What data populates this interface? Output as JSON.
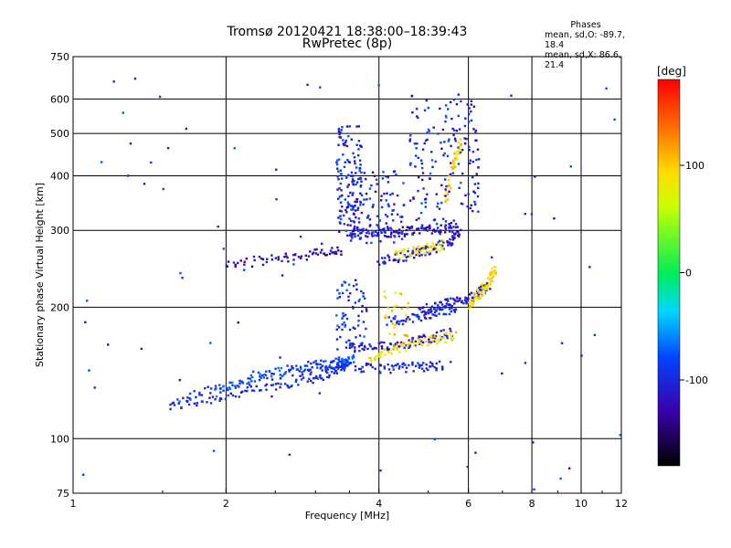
{
  "header": {
    "title": "Tromsø 20120421 18:38:00–18:39:43",
    "subtitle": "RwPretec (8p)"
  },
  "phases_box": {
    "heading": "Phases",
    "line_o": "mean, sd,O: -89.7, 18.4",
    "line_x": "mean, sd,X: 86.6, 21.4"
  },
  "colorbar": {
    "label": "[deg]",
    "ticks": [
      "100",
      "0",
      "-100"
    ]
  },
  "chart_data": {
    "type": "scatter",
    "title": "Tromsø 20120421 18:38:00–18:39:43",
    "subtitle": "RwPretec (8p)",
    "xlabel": "Frequency [MHz]",
    "ylabel": "Stationary phase Virtual Height [km]",
    "xscale": "log",
    "yscale": "log",
    "xlim": [
      1,
      12
    ],
    "ylim": [
      75,
      750
    ],
    "xticks": [
      "1",
      "2",
      "4",
      "6",
      "8",
      "10",
      "12"
    ],
    "yticks": [
      "75",
      "100",
      "200",
      "300",
      "400",
      "500",
      "600",
      "750"
    ],
    "grid": true,
    "color_variable": "phase [deg]",
    "color_range": [
      -180,
      180
    ],
    "traces": [
      {
        "x": [
          1.55,
          2.0,
          2.5,
          3.0,
          3.3,
          3.5
        ],
        "y": [
          118,
          125,
          132,
          138,
          144,
          148
        ],
        "phase": -100
      },
      {
        "x": [
          1.6,
          2.0,
          2.6,
          3.2,
          3.5
        ],
        "y": [
          123,
          132,
          140,
          147,
          150
        ],
        "phase": -90
      },
      {
        "x": [
          1.9,
          2.3,
          2.8,
          3.3,
          3.6
        ],
        "y": [
          128,
          140,
          146,
          150,
          152
        ],
        "phase": -80
      },
      {
        "x": [
          2.0,
          2.5,
          3.0,
          3.4
        ],
        "y": [
          250,
          258,
          265,
          270
        ],
        "phase": -120
      },
      {
        "x": [
          3.5,
          4.0,
          4.5,
          5.0,
          5.6
        ],
        "y": [
          160,
          162,
          165,
          170,
          175
        ],
        "phase": -110
      },
      {
        "x": [
          3.6,
          4.2,
          4.8,
          5.4
        ],
        "y": [
          145,
          145,
          146,
          147
        ],
        "phase": -100
      },
      {
        "x": [
          4.0,
          4.5,
          5.0,
          5.5,
          5.8
        ],
        "y": [
          255,
          262,
          270,
          282,
          300
        ],
        "phase": -110
      },
      {
        "x": [
          3.5,
          4.0,
          4.5,
          5.0,
          5.6
        ],
        "y": [
          295,
          296,
          298,
          302,
          305
        ],
        "phase": -120
      },
      {
        "x": [
          4.2,
          4.8,
          5.3,
          5.7
        ],
        "y": [
          185,
          190,
          196,
          200
        ],
        "phase": -100
      },
      {
        "x": [
          4.8,
          5.3,
          5.8,
          6.2,
          6.6
        ],
        "y": [
          196,
          202,
          207,
          212,
          225
        ],
        "phase": -110
      },
      {
        "x": [
          3.8,
          4.3,
          5.0,
          5.7
        ],
        "y": [
          150,
          160,
          168,
          172
        ],
        "phase": 90
      },
      {
        "x": [
          4.3,
          4.8,
          5.4
        ],
        "y": [
          262,
          270,
          278
        ],
        "phase": 85
      },
      {
        "x": [
          5.4,
          5.6,
          5.8
        ],
        "y": [
          350,
          420,
          480
        ],
        "phase": 100
      },
      {
        "x": [
          6.0,
          6.3,
          6.6,
          6.8
        ],
        "y": [
          200,
          215,
          230,
          245
        ],
        "phase": 90
      }
    ],
    "clusters": [
      {
        "x_range": [
          3.3,
          3.7
        ],
        "y_range": [
          290,
          520
        ],
        "phase": -100,
        "count": 140
      },
      {
        "x_range": [
          3.5,
          4.5
        ],
        "y_range": [
          280,
          410
        ],
        "phase": -100,
        "count": 110
      },
      {
        "x_range": [
          4.6,
          5.8
        ],
        "y_range": [
          300,
          620
        ],
        "phase": -100,
        "count": 120
      },
      {
        "x_range": [
          3.3,
          3.8
        ],
        "y_range": [
          160,
          230
        ],
        "phase": -90,
        "count": 70
      },
      {
        "x_range": [
          5.8,
          6.3
        ],
        "y_range": [
          330,
          620
        ],
        "phase": -110,
        "count": 50
      },
      {
        "x_range": [
          4.1,
          4.6
        ],
        "y_range": [
          170,
          220
        ],
        "phase": 95,
        "count": 25
      },
      {
        "x_range": [
          1.0,
          12.0
        ],
        "y_range": [
          75,
          700
        ],
        "phase": -100,
        "count": 80
      }
    ]
  }
}
